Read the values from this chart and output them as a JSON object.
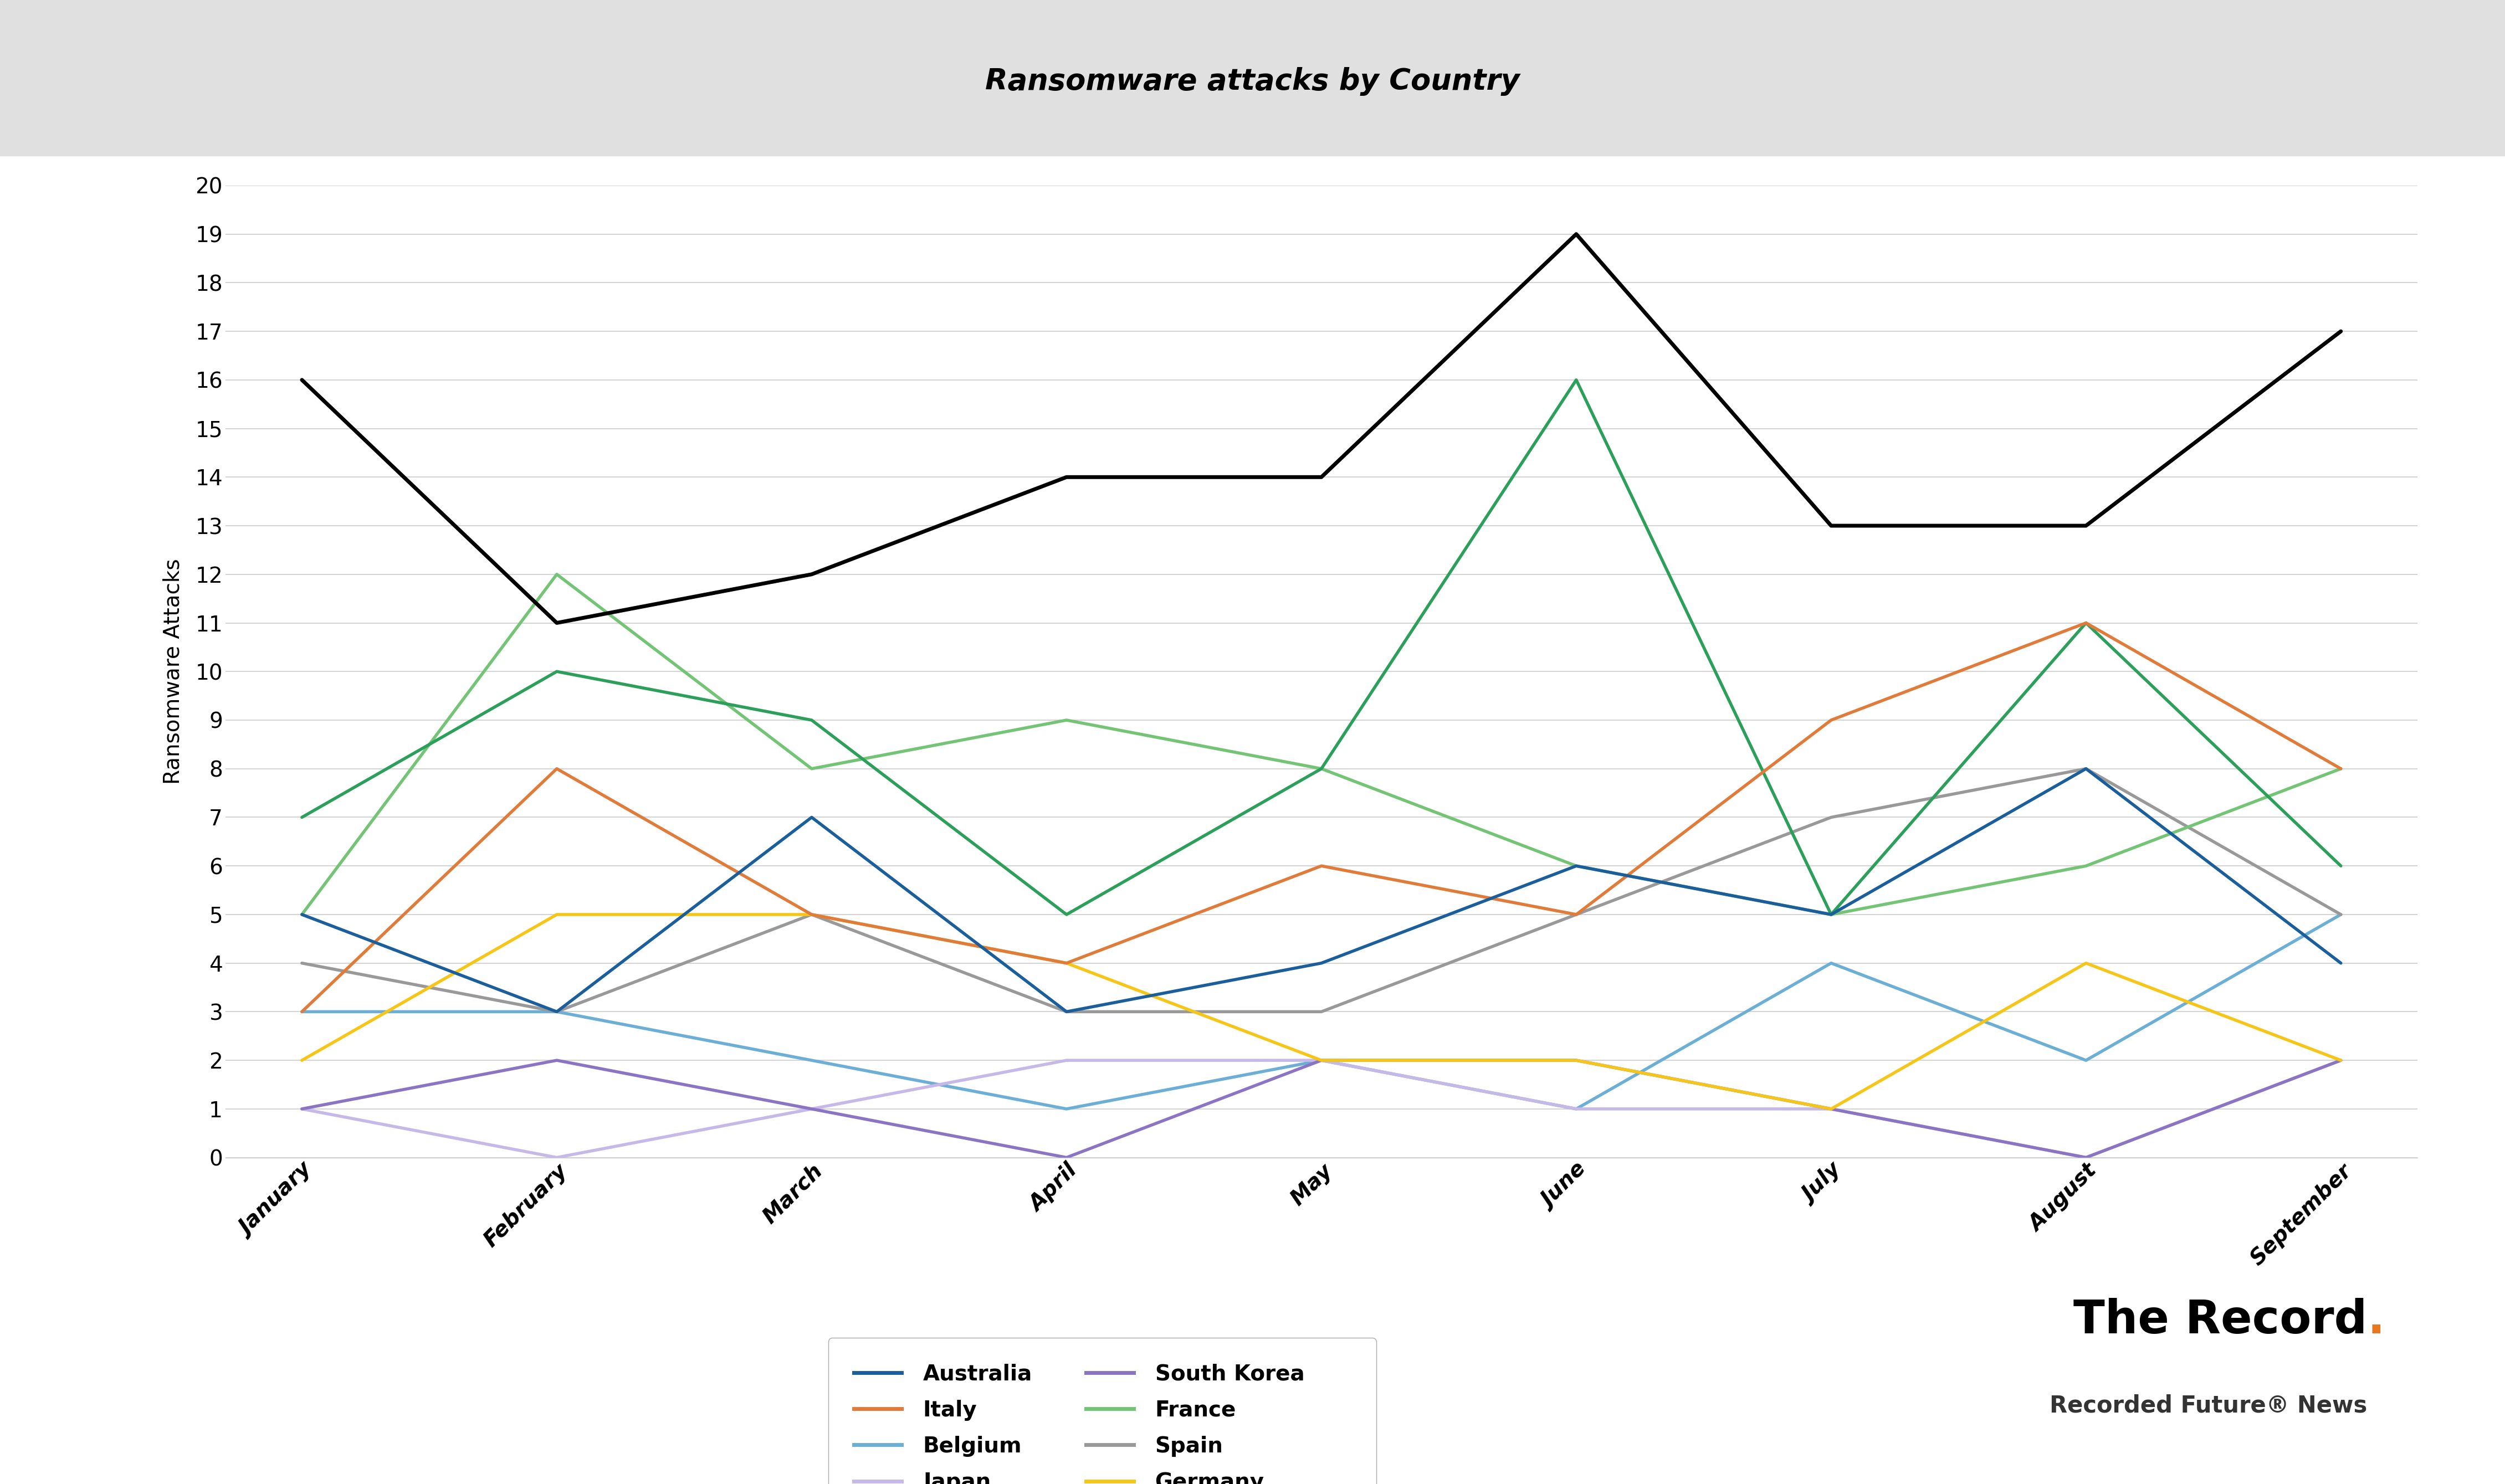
{
  "title": "Ransomware attacks by Country",
  "ylabel": "Ransomware Attacks",
  "months": [
    "January",
    "February",
    "March",
    "April",
    "May",
    "June",
    "July",
    "August",
    "September"
  ],
  "series": {
    "Australia": {
      "values": [
        5,
        3,
        7,
        3,
        4,
        6,
        5,
        8,
        4
      ],
      "color": "#1a5f9c"
    },
    "Belgium": {
      "values": [
        3,
        3,
        2,
        1,
        2,
        1,
        4,
        2,
        5
      ],
      "color": "#6baed6"
    },
    "Canada": {
      "values": [
        7,
        10,
        9,
        5,
        8,
        16,
        5,
        11,
        6
      ],
      "color": "#2ca05a"
    },
    "France": {
      "values": [
        5,
        12,
        8,
        9,
        8,
        6,
        5,
        6,
        8
      ],
      "color": "#74c476"
    },
    "Germany": {
      "values": [
        2,
        5,
        5,
        4,
        2,
        2,
        1,
        4,
        2
      ],
      "color": "#f5c518"
    },
    "Italy": {
      "values": [
        3,
        8,
        5,
        4,
        6,
        5,
        9,
        11,
        8
      ],
      "color": "#e07b39"
    },
    "Japan": {
      "values": [
        1,
        0,
        1,
        2,
        2,
        1,
        1,
        0,
        2
      ],
      "color": "#c6b8e8"
    },
    "South Korea": {
      "values": [
        1,
        2,
        1,
        0,
        2,
        2,
        1,
        0,
        2
      ],
      "color": "#8b74c4"
    },
    "Spain": {
      "values": [
        4,
        3,
        5,
        3,
        3,
        5,
        7,
        8,
        5
      ],
      "color": "#999999"
    },
    "United Kingdom": {
      "values": [
        16,
        11,
        12,
        14,
        14,
        19,
        13,
        13,
        17
      ],
      "color": "#000000"
    }
  },
  "ylim": [
    0,
    20
  ],
  "yticks": [
    0,
    1,
    2,
    3,
    4,
    5,
    6,
    7,
    8,
    9,
    10,
    11,
    12,
    13,
    14,
    15,
    16,
    17,
    18,
    19,
    20
  ],
  "header_bg_color": "#e0e0e0",
  "plot_background": "#ffffff",
  "bottom_bg_color": "#ffffff",
  "title_fontsize": 38,
  "axis_label_fontsize": 28,
  "tick_fontsize": 28,
  "legend_fontsize": 28,
  "watermark_text": "The Record",
  "watermark_dot": ".",
  "watermark_dot_color": "#e87722",
  "watermark_subtext": "Recorded Future® News",
  "linewidth": 4.0,
  "uk_linewidth": 5.0
}
